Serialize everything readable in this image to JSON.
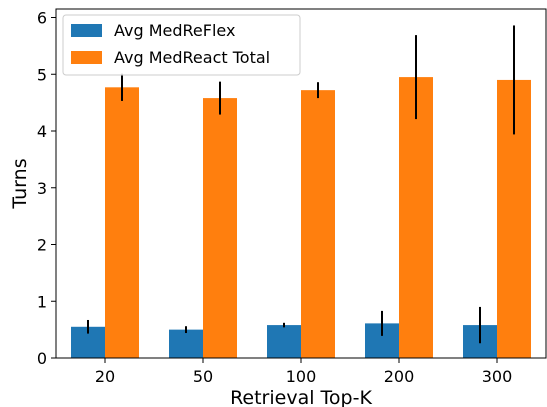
{
  "colors": {
    "series_0": "#1f77b4",
    "series_1": "#ff7f0e",
    "error_bar": "#000000",
    "axis": "#000000",
    "legend_border": "#cccccc"
  },
  "chart_data": {
    "type": "bar",
    "title": "",
    "xlabel": "Retrieval Top-K",
    "ylabel": "Turns",
    "categories": [
      "20",
      "50",
      "100",
      "200",
      "300"
    ],
    "ylim": [
      0,
      6.15
    ],
    "yticks": [
      "0",
      "1",
      "2",
      "3",
      "4",
      "5",
      "6"
    ],
    "grid": false,
    "legend_position": "top-left",
    "error_bars": true,
    "series": [
      {
        "name": "Avg MedReFlex",
        "values": [
          0.55,
          0.5,
          0.58,
          0.61,
          0.58
        ],
        "errors": [
          0.12,
          0.06,
          0.04,
          0.22,
          0.32
        ]
      },
      {
        "name": "Avg MedReact Total",
        "values": [
          4.77,
          4.58,
          4.72,
          4.95,
          4.9
        ],
        "errors": [
          0.24,
          0.29,
          0.14,
          0.74,
          0.96
        ]
      }
    ]
  }
}
